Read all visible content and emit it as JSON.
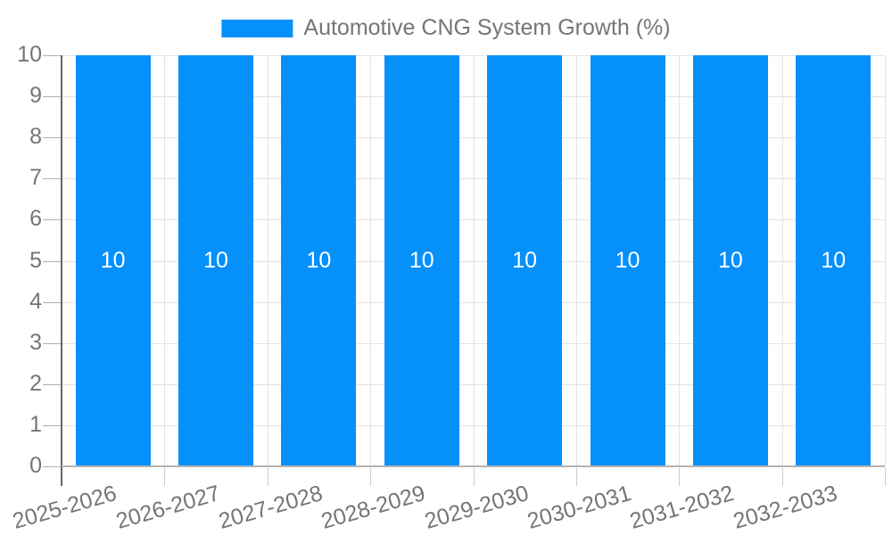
{
  "chart_data": {
    "type": "bar",
    "title": "Automotive CNG System Growth (%)",
    "categories": [
      "2025-2026",
      "2026-2027",
      "2027-2028",
      "2028-2029",
      "2029-2030",
      "2030-2031",
      "2031-2032",
      "2032-2033"
    ],
    "values": [
      10,
      10,
      10,
      10,
      10,
      10,
      10,
      10
    ],
    "bar_value_labels": [
      "10",
      "10",
      "10",
      "10",
      "10",
      "10",
      "10",
      "10"
    ],
    "ylim": [
      0,
      10
    ],
    "ytick_step": 1,
    "ytick_labels": [
      "0",
      "1",
      "2",
      "3",
      "4",
      "5",
      "6",
      "7",
      "8",
      "9",
      "10"
    ],
    "grid": true,
    "legend": {
      "position": "top",
      "entries": [
        {
          "label": "Automotive CNG System Growth (%)",
          "color": "#0590fa"
        }
      ]
    }
  },
  "colors": {
    "bar": "#0590fa",
    "bar_value_text": "#ffffff",
    "axis_text": "#757575",
    "gridline": "#e3e3e3",
    "y_tick": "#b0b0b0",
    "x_tick": "#cccccc",
    "y_axis_line": "#666666",
    "baseline": "#b3b3b3",
    "background": "#ffffff"
  }
}
